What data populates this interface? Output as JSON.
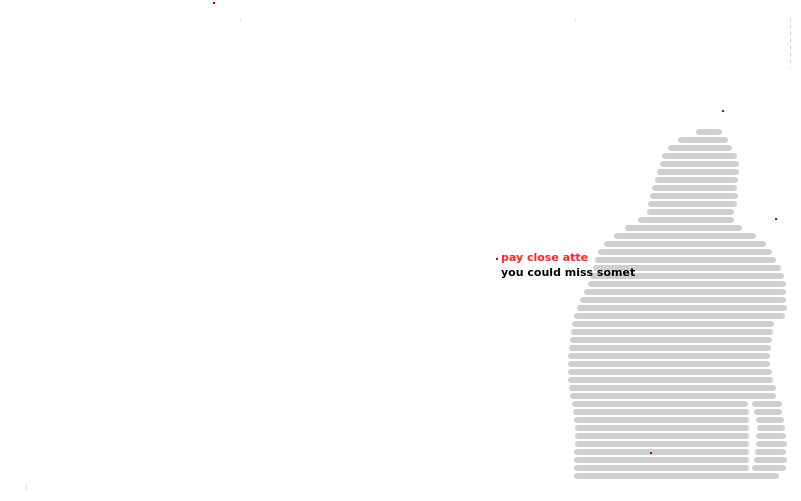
{
  "teaser": {
    "line1": "pay close atte",
    "line2": "you could miss somet"
  },
  "colors": {
    "background": "#ffffff",
    "stripe": "#cfcfcf",
    "accent_red": "#ff2424",
    "text_dark": "#000000"
  },
  "illustration": {
    "icon": "striped-figure-silhouette"
  }
}
